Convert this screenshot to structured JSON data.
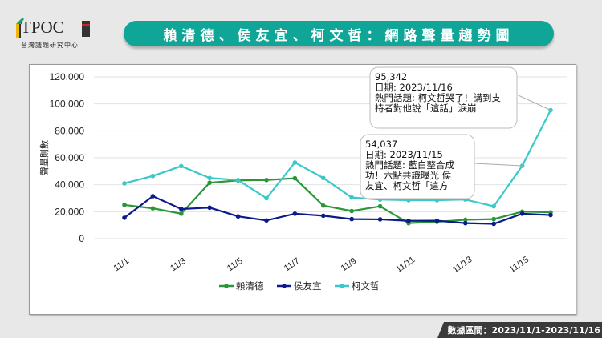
{
  "header": {
    "logo_text": "TPOC",
    "logo_subtitle": "台灣議題研究中心",
    "title": "賴清德、侯友宜、柯文哲：網路聲量趨勢圖"
  },
  "footer": {
    "date_range": "數據區間：2023/11/1-2023/11/16"
  },
  "chart_data": {
    "type": "line",
    "ylabel": "聲量則數",
    "ylim": [
      0,
      120000
    ],
    "yticks": [
      0,
      20000,
      40000,
      60000,
      80000,
      100000,
      120000
    ],
    "ytick_labels": [
      "0",
      "20,000",
      "40,000",
      "60,000",
      "80,000",
      "100,000",
      "120,000"
    ],
    "x": [
      "11/1",
      "11/2",
      "11/3",
      "11/4",
      "11/5",
      "11/6",
      "11/7",
      "11/8",
      "11/9",
      "11/10",
      "11/11",
      "11/12",
      "11/13",
      "11/14",
      "11/15",
      "11/16"
    ],
    "xtick_labels": [
      "11/1",
      "11/3",
      "11/5",
      "11/7",
      "11/9",
      "11/11",
      "11/13",
      "11/15"
    ],
    "grid": true,
    "legend": "bottom",
    "series": [
      {
        "name": "賴清德",
        "color": "#2a9638",
        "values": [
          25000,
          22500,
          18500,
          41500,
          43200,
          43500,
          44800,
          24500,
          20500,
          24000,
          11500,
          12500,
          14000,
          14500,
          20000,
          19500
        ]
      },
      {
        "name": "侯友宜",
        "color": "#0c1a8c",
        "values": [
          15500,
          31500,
          22000,
          23000,
          16500,
          13500,
          18500,
          17000,
          14500,
          14300,
          13200,
          13300,
          11500,
          11000,
          18500,
          17500
        ]
      },
      {
        "name": "柯文哲",
        "color": "#3cc8c8",
        "values": [
          41000,
          46500,
          53800,
          45000,
          43500,
          30000,
          56500,
          45000,
          30500,
          29000,
          28500,
          28500,
          29000,
          24000,
          54037,
          95342
        ]
      }
    ],
    "annotations": [
      {
        "series": "柯文哲",
        "x": "11/16",
        "value_label": "95,342",
        "date_label": "日期: 2023/11/16",
        "topic_lines": [
          "熱門話題: 柯文哲哭了！講到支",
          "持者對他說「這話」淚崩"
        ]
      },
      {
        "series": "柯文哲",
        "x": "11/15",
        "value_label": "54,037",
        "date_label": "日期: 2023/11/15",
        "topic_lines": [
          "熱門話題: 藍白整合成",
          "功！六點共識曝光 侯",
          "友宜、柯文哲「這方"
        ]
      }
    ]
  }
}
